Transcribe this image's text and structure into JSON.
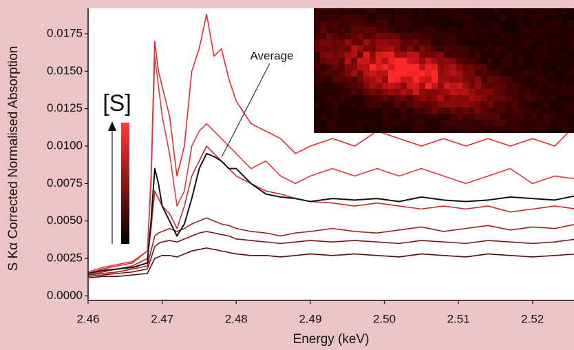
{
  "chart_data": {
    "type": "line",
    "xlabel": "Energy (keV)",
    "ylabel": "S Kα Corrected Normalised Absorption",
    "annotations": [
      "[S]"
    ],
    "x": [
      2.46,
      2.462,
      2.464,
      2.466,
      2.468,
      2.4685,
      2.469,
      2.4695,
      2.47,
      2.471,
      2.472,
      2.473,
      2.474,
      2.475,
      2.476,
      2.477,
      2.478,
      2.479,
      2.48,
      2.482,
      2.484,
      2.486,
      2.488,
      2.49,
      2.493,
      2.496,
      2.499,
      2.502,
      2.505,
      2.508,
      2.511,
      2.514,
      2.517,
      2.52,
      2.523,
      2.526
    ],
    "series": [
      {
        "color": "#e8272a",
        "values": [
          0.0015,
          0.0018,
          0.002,
          0.0022,
          0.003,
          0.008,
          0.017,
          0.015,
          0.014,
          0.012,
          0.008,
          0.01,
          0.015,
          0.0165,
          0.0188,
          0.016,
          0.0165,
          0.0145,
          0.013,
          0.0115,
          0.011,
          0.0105,
          0.0095,
          0.01,
          0.0105,
          0.01,
          0.011,
          0.0105,
          0.01,
          0.0105,
          0.01,
          0.0105,
          0.01,
          0.0105,
          0.01,
          0.0115
        ]
      },
      {
        "color": "#dd3a3a",
        "values": [
          0.0016,
          0.0019,
          0.0021,
          0.0023,
          0.003,
          0.0075,
          0.016,
          0.014,
          0.012,
          0.0095,
          0.006,
          0.007,
          0.01,
          0.011,
          0.0115,
          0.011,
          0.0105,
          0.01,
          0.0095,
          0.0085,
          0.009,
          0.008,
          0.0075,
          0.008,
          0.0085,
          0.008,
          0.0085,
          0.008,
          0.0085,
          0.008,
          0.0075,
          0.008,
          0.0085,
          0.0075,
          0.008,
          0.0078
        ]
      },
      {
        "color": "#c42a2a",
        "values": [
          0.0014,
          0.0016,
          0.0018,
          0.002,
          0.0025,
          0.0045,
          0.007,
          0.0065,
          0.006,
          0.0055,
          0.0045,
          0.006,
          0.008,
          0.009,
          0.01,
          0.0095,
          0.009,
          0.0085,
          0.008,
          0.0075,
          0.007,
          0.0068,
          0.0065,
          0.0063,
          0.0062,
          0.006,
          0.0062,
          0.006,
          0.0058,
          0.006,
          0.0058,
          0.006,
          0.0056,
          0.0058,
          0.006,
          0.0058
        ]
      },
      {
        "color": "#9b2020",
        "values": [
          0.0014,
          0.0015,
          0.0016,
          0.0018,
          0.002,
          0.003,
          0.004,
          0.0042,
          0.0043,
          0.0045,
          0.0043,
          0.0045,
          0.0048,
          0.005,
          0.0052,
          0.005,
          0.0048,
          0.0047,
          0.0045,
          0.0043,
          0.0042,
          0.004,
          0.0042,
          0.0043,
          0.0045,
          0.0043,
          0.0042,
          0.0044,
          0.0046,
          0.0043,
          0.0045,
          0.0047,
          0.0044,
          0.0046,
          0.0045,
          0.0048
        ]
      },
      {
        "color": "#7a1414",
        "values": [
          0.0013,
          0.0014,
          0.0015,
          0.0016,
          0.0018,
          0.0025,
          0.0033,
          0.0035,
          0.0036,
          0.0037,
          0.0036,
          0.0038,
          0.004,
          0.0042,
          0.0043,
          0.0042,
          0.0041,
          0.004,
          0.0038,
          0.0037,
          0.0036,
          0.0035,
          0.0036,
          0.0037,
          0.0036,
          0.0037,
          0.0036,
          0.0035,
          0.0037,
          0.0036,
          0.0035,
          0.0037,
          0.0036,
          0.0035,
          0.0036,
          0.0038
        ]
      },
      {
        "color": "#560c0c",
        "values": [
          0.0012,
          0.0013,
          0.0013,
          0.0014,
          0.0015,
          0.002,
          0.0025,
          0.0026,
          0.0027,
          0.0027,
          0.0026,
          0.0028,
          0.003,
          0.0031,
          0.0032,
          0.0031,
          0.003,
          0.0029,
          0.0028,
          0.0027,
          0.0027,
          0.0026,
          0.0027,
          0.0028,
          0.0027,
          0.0028,
          0.0027,
          0.0026,
          0.0028,
          0.0027,
          0.0026,
          0.0028,
          0.0027,
          0.0026,
          0.0027,
          0.0028
        ]
      },
      {
        "name": "Average",
        "color": "#111111",
        "values": [
          0.0015,
          0.0017,
          0.0018,
          0.0019,
          0.0022,
          0.005,
          0.0085,
          0.0075,
          0.006,
          0.005,
          0.004,
          0.0048,
          0.0065,
          0.0085,
          0.0095,
          0.0093,
          0.009,
          0.0085,
          0.0085,
          0.0075,
          0.0068,
          0.0066,
          0.0065,
          0.0063,
          0.0065,
          0.0064,
          0.0065,
          0.0063,
          0.0066,
          0.0064,
          0.0063,
          0.0064,
          0.0066,
          0.0065,
          0.0064,
          0.0067
        ]
      }
    ],
    "xlim": [
      2.46,
      2.5256
    ],
    "xticks": [
      2.46,
      2.47,
      2.48,
      2.49,
      {
        "value": 2.5,
        "label": "2.50"
      },
      2.51,
      2.52
    ],
    "ylim": [
      -0.0003,
      0.0192
    ],
    "yticks": [
      {
        "value": 0,
        "label": "0.0000"
      },
      {
        "value": 0.0025,
        "label": "0.0025"
      },
      {
        "value": 0.005,
        "label": "0.0050"
      },
      {
        "value": 0.0075,
        "label": "0.0075"
      },
      {
        "value": 0.01,
        "label": "0.0100"
      },
      {
        "value": 0.0125,
        "label": "0.0125"
      },
      {
        "value": 0.015,
        "label": "0.0150"
      },
      {
        "value": 0.0175,
        "label": "0.0175"
      }
    ]
  }
}
